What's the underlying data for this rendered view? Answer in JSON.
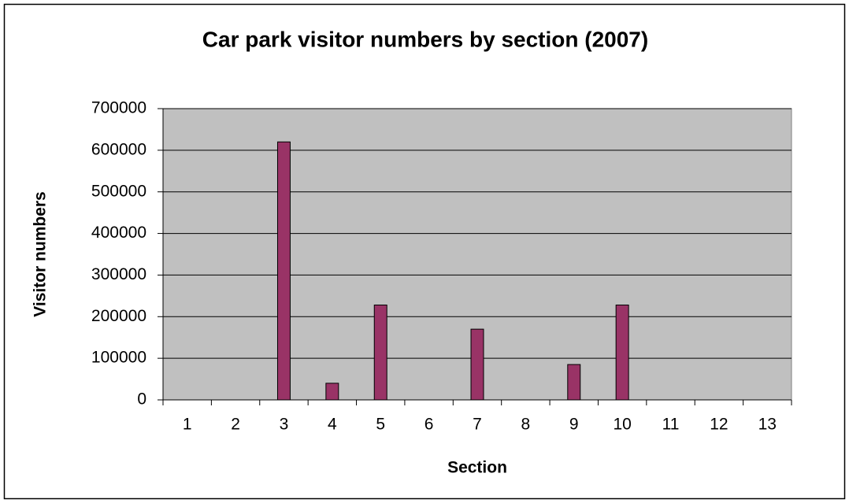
{
  "chart_data": {
    "type": "bar",
    "title": "Car park visitor numbers by section (2007)",
    "x_label": "Section",
    "y_label": "Visitor numbers",
    "categories": [
      "1",
      "2",
      "3",
      "4",
      "5",
      "6",
      "7",
      "8",
      "9",
      "10",
      "11",
      "12",
      "13"
    ],
    "values": [
      0,
      0,
      620000,
      40000,
      228000,
      0,
      170000,
      0,
      85000,
      228000,
      0,
      0,
      0
    ],
    "color": "#993366",
    "ylim": [
      0,
      700000
    ],
    "yticks": [
      0,
      100000,
      200000,
      300000,
      400000,
      500000,
      600000,
      700000
    ],
    "grid": true
  }
}
